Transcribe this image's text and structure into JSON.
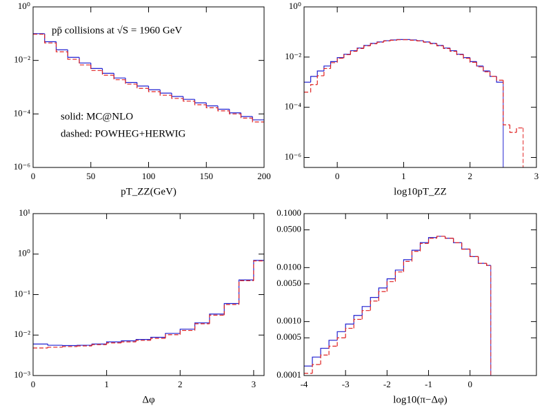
{
  "chart_data": [
    {
      "type": "histogram",
      "yscale": "log",
      "xlabel": "pT_ZZ(GeV)",
      "annotations": [
        "pp̄ collisions at √S = 1960 GeV",
        "solid: MC@NLO",
        "dashed: POWHEG+HERWIG"
      ],
      "bins": [
        0,
        10,
        20,
        30,
        40,
        50,
        60,
        70,
        80,
        90,
        100,
        110,
        120,
        130,
        140,
        150,
        160,
        170,
        180,
        190,
        200
      ],
      "xlim": [
        0,
        200
      ],
      "xticks": [
        0,
        50,
        100,
        150,
        200
      ],
      "ylim": [
        1e-06,
        1
      ],
      "yticks": [
        {
          "value": 1e-06,
          "label": "10⁻⁶"
        },
        {
          "value": 0.0001,
          "label": "10⁻⁴"
        },
        {
          "value": 0.01,
          "label": "10⁻²"
        },
        {
          "value": 1,
          "label": "10⁰"
        }
      ],
      "series": [
        {
          "color": "#1f1fd0",
          "style": "solid",
          "values": [
            0.1,
            0.05,
            0.025,
            0.013,
            0.008,
            0.005,
            0.0033,
            0.0022,
            0.0015,
            0.0011,
            0.0008,
            0.0006,
            0.00045,
            0.00035,
            0.00026,
            0.0002,
            0.00015,
            0.00011,
            8e-05,
            6e-05
          ]
        },
        {
          "color": "#e02020",
          "style": "dashed",
          "values": [
            0.095,
            0.045,
            0.021,
            0.011,
            0.0068,
            0.0042,
            0.0028,
            0.0019,
            0.0013,
            0.0009,
            0.00068,
            0.0005,
            0.00038,
            0.0003,
            0.00022,
            0.00017,
            0.00013,
            0.0001,
            7e-05,
            5e-05
          ]
        }
      ]
    },
    {
      "type": "histogram",
      "yscale": "log",
      "xlabel": "log10pT_ZZ",
      "bins": [
        -0.5,
        -0.4,
        -0.3,
        -0.2,
        -0.1,
        0,
        0.1,
        0.2,
        0.3,
        0.4,
        0.5,
        0.6,
        0.7,
        0.8,
        0.9,
        1,
        1.1,
        1.2,
        1.3,
        1.4,
        1.5,
        1.6,
        1.7,
        1.8,
        1.9,
        2,
        2.1,
        2.2,
        2.3,
        2.4,
        2.5,
        2.6,
        2.7,
        2.8
      ],
      "xlim": [
        -0.5,
        3
      ],
      "xticks": [
        0,
        1,
        2,
        3
      ],
      "ylim": [
        4e-07,
        1
      ],
      "yticks": [
        {
          "value": 1e-06,
          "label": "10⁻⁶"
        },
        {
          "value": 0.0001,
          "label": "10⁻⁴"
        },
        {
          "value": 0.01,
          "label": "10⁻²"
        },
        {
          "value": 1,
          "label": "10⁰"
        }
      ],
      "series": [
        {
          "color": "#1f1fd0",
          "style": "solid",
          "values": [
            0.001,
            0.0017,
            0.0028,
            0.0044,
            0.0066,
            0.0095,
            0.013,
            0.018,
            0.023,
            0.029,
            0.035,
            0.04,
            0.045,
            0.048,
            0.05,
            0.05,
            0.048,
            0.045,
            0.04,
            0.035,
            0.029,
            0.023,
            0.018,
            0.013,
            0.0095,
            0.0066,
            0.0044,
            0.0028,
            0.0017,
            0.001,
            null,
            null,
            null
          ]
        },
        {
          "color": "#e02020",
          "style": "dashed",
          "values": [
            0.0004,
            0.0008,
            0.0018,
            0.0035,
            0.006,
            0.009,
            0.0125,
            0.017,
            0.022,
            0.028,
            0.034,
            0.039,
            0.044,
            0.047,
            0.049,
            0.049,
            0.047,
            0.044,
            0.039,
            0.034,
            0.028,
            0.022,
            0.017,
            0.0125,
            0.009,
            0.0062,
            0.0041,
            0.0026,
            0.0017,
            0.0012,
            2e-05,
            1e-05,
            1.5e-05
          ]
        }
      ]
    },
    {
      "type": "histogram",
      "yscale": "log",
      "xlabel": "Δφ",
      "bins": [
        0,
        0.2,
        0.4,
        0.6,
        0.8,
        1,
        1.2,
        1.4,
        1.6,
        1.8,
        2,
        2.2,
        2.4,
        2.6,
        2.8,
        3,
        3.14159
      ],
      "xlim": [
        0,
        3.14159
      ],
      "xticks": [
        0,
        1,
        2,
        3
      ],
      "ylim": [
        0.001,
        10
      ],
      "yticks": [
        {
          "value": 0.001,
          "label": "10⁻³"
        },
        {
          "value": 0.01,
          "label": "10⁻²"
        },
        {
          "value": 0.1,
          "label": "10⁻¹"
        },
        {
          "value": 1,
          "label": "10⁰"
        },
        {
          "value": 10,
          "label": "10¹"
        }
      ],
      "series": [
        {
          "color": "#1f1fd0",
          "style": "solid",
          "values": [
            0.006,
            0.0056,
            0.0055,
            0.0056,
            0.006,
            0.0068,
            0.0072,
            0.0078,
            0.0088,
            0.011,
            0.014,
            0.02,
            0.033,
            0.06,
            0.23,
            0.7
          ]
        },
        {
          "color": "#e02020",
          "style": "dashed",
          "values": [
            0.0048,
            0.005,
            0.0052,
            0.0054,
            0.0058,
            0.0064,
            0.0068,
            0.0074,
            0.0083,
            0.0102,
            0.013,
            0.019,
            0.031,
            0.057,
            0.22,
            0.68
          ]
        }
      ]
    },
    {
      "type": "histogram",
      "yscale": "log",
      "xlabel": "log10(π−Δφ)",
      "bins": [
        -4,
        -3.8,
        -3.6,
        -3.4,
        -3.2,
        -3,
        -2.8,
        -2.6,
        -2.4,
        -2.2,
        -2,
        -1.8,
        -1.6,
        -1.4,
        -1.2,
        -1,
        -0.8,
        -0.6,
        -0.4,
        -0.2,
        0,
        0.2,
        0.4,
        0.5
      ],
      "xlim": [
        -4,
        1.6
      ],
      "xticks": [
        -4,
        -3,
        -2,
        -1,
        0
      ],
      "ylim": [
        0.0001,
        0.1
      ],
      "yticks": [
        {
          "value": 0.0001,
          "label": "0.0001"
        },
        {
          "value": 0.0005,
          "label": "0.0005"
        },
        {
          "value": 0.001,
          "label": "0.0010"
        },
        {
          "value": 0.005,
          "label": "0.0050"
        },
        {
          "value": 0.01,
          "label": "0.0100"
        },
        {
          "value": 0.05,
          "label": "0.0500"
        },
        {
          "value": 0.1,
          "label": "0.1000"
        }
      ],
      "series": [
        {
          "color": "#1f1fd0",
          "style": "solid",
          "values": [
            0.00015,
            0.00022,
            0.00032,
            0.00045,
            0.00065,
            0.0009,
            0.0013,
            0.0019,
            0.0028,
            0.0042,
            0.0062,
            0.009,
            0.014,
            0.021,
            0.029,
            0.036,
            0.038,
            0.035,
            0.029,
            0.022,
            0.016,
            0.012,
            0.011
          ]
        },
        {
          "color": "#e02020",
          "style": "dashed",
          "values": [
            0.00011,
            0.00016,
            0.00024,
            0.00035,
            0.0005,
            0.00075,
            0.0011,
            0.0016,
            0.0024,
            0.0036,
            0.0055,
            0.0083,
            0.013,
            0.02,
            0.028,
            0.035,
            0.038,
            0.035,
            0.029,
            0.022,
            0.016,
            0.012,
            0.011
          ]
        }
      ]
    }
  ]
}
